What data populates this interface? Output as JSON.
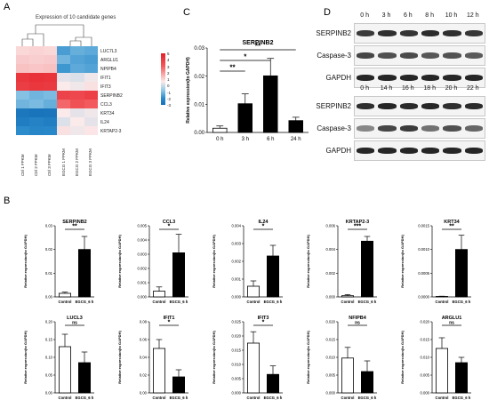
{
  "panels": {
    "A": "A",
    "B": "B",
    "C": "C",
    "D": "D"
  },
  "heatmap": {
    "title": "Expression of 10 candidate genes",
    "columns": [
      "Ctrl 1 FPKM",
      "Ctrl 2 FPKM",
      "Ctrl 3 FPKM",
      "EGCG 1 FPKM",
      "EGCG 2 FPKM",
      "EGCG 3 FPKM"
    ],
    "genes": [
      "LUC7L3",
      "ARGLU1",
      "NPIPB4",
      "IFIT1",
      "IFIT3",
      "SERPINB2",
      "CCL3",
      "KRT34",
      "IL24",
      "KRTAP2-3"
    ],
    "values": [
      [
        0.9,
        1.0,
        0.9,
        -1.2,
        -0.9,
        -1.0
      ],
      [
        1.2,
        1.1,
        1.2,
        -0.8,
        -1.1,
        -1.2
      ],
      [
        1.4,
        1.3,
        1.4,
        -1.3,
        -1.0,
        -1.1
      ],
      [
        4.2,
        4.4,
        4.3,
        0.3,
        0.2,
        0.4
      ],
      [
        4.0,
        4.2,
        4.1,
        0.5,
        0.4,
        0.7
      ],
      [
        -0.6,
        -0.8,
        -0.7,
        3.8,
        3.6,
        3.9
      ],
      [
        -0.8,
        -0.7,
        -0.9,
        2.8,
        3.3,
        3.0
      ],
      [
        -2.6,
        -2.8,
        -2.7,
        0.5,
        0.3,
        0.4
      ],
      [
        -2.3,
        -2.0,
        -2.2,
        0.2,
        0.5,
        0.3
      ],
      [
        -1.5,
        -1.8,
        -1.7,
        0.7,
        0.4,
        0.6
      ]
    ],
    "legend_ticks": [
      "5",
      "4",
      "3",
      "2",
      "1",
      "0",
      "-1",
      "-2",
      "-3"
    ],
    "legend_range": [
      -3,
      5
    ]
  },
  "panel_c": {
    "title": "SERPINB2",
    "ylabel": "Relative expression(to GAPDH)",
    "categories": [
      "0 h",
      "3 h",
      "6 h",
      "24 h"
    ],
    "values": [
      0.0015,
      0.0102,
      0.0201,
      0.0042
    ],
    "errors": [
      0.0008,
      0.0035,
      0.0062,
      0.0012
    ],
    "y_ticks": [
      "0.00",
      "0.01",
      "0.02",
      "0.03"
    ],
    "ylim": [
      0,
      0.03
    ],
    "sig": [
      {
        "from": 0,
        "to": 1,
        "label": "**"
      },
      {
        "from": 0,
        "to": 2,
        "label": "*"
      },
      {
        "from": 0,
        "to": 3,
        "label": "**"
      }
    ]
  },
  "panel_d": {
    "top_times": [
      "0 h",
      "3 h",
      "6 h",
      "8 h",
      "10 h",
      "12 h"
    ],
    "bottom_times": [
      "0 h",
      "14 h",
      "16 h",
      "18 h",
      "20 h",
      "22 h"
    ],
    "top_labels": [
      "SERPINB2",
      "Caspase-3",
      "GAPDH"
    ],
    "bottom_labels": [
      "SERPINB2",
      "Caspase-3",
      "GAPDH"
    ],
    "top_intensity": [
      [
        0.85,
        0.9,
        0.88,
        0.92,
        0.9,
        0.87
      ],
      [
        0.8,
        0.75,
        0.78,
        0.72,
        0.74,
        0.7
      ],
      [
        0.95,
        0.95,
        0.95,
        0.95,
        0.95,
        0.95
      ]
    ],
    "bottom_intensity": [
      [
        0.9,
        0.95,
        0.93,
        0.95,
        0.9,
        0.92
      ],
      [
        0.5,
        0.8,
        0.85,
        0.6,
        0.75,
        0.65
      ],
      [
        0.95,
        0.95,
        0.95,
        0.95,
        0.95,
        0.95
      ]
    ]
  },
  "panel_b": {
    "ylabel": "Relative expression(to GAPDH)",
    "groups": [
      "Control",
      "EGCG_6 h"
    ],
    "charts": [
      {
        "title": "SERPINB2",
        "values": [
          0.0015,
          0.02
        ],
        "errors": [
          0.0005,
          0.0055
        ],
        "ylim": [
          0,
          0.03
        ],
        "ticks": [
          "0.00",
          "0.01",
          "0.02",
          "0.03"
        ],
        "sig": "**",
        "fill": "#000000"
      },
      {
        "title": "CCL3",
        "values": [
          0.0004,
          0.0031
        ],
        "errors": [
          0.0003,
          0.0013
        ],
        "ylim": [
          0,
          0.005
        ],
        "ticks": [
          "0.000",
          "0.001",
          "0.002",
          "0.003",
          "0.004",
          "0.005"
        ],
        "sig": "*",
        "fill": "#000000"
      },
      {
        "title": "IL24",
        "values": [
          0.0006,
          0.0023
        ],
        "errors": [
          0.0003,
          0.0006
        ],
        "ylim": [
          0,
          0.004
        ],
        "ticks": [
          "0.000",
          "0.001",
          "0.002",
          "0.003",
          "0.004"
        ],
        "sig": "*",
        "fill": "#000000"
      },
      {
        "title": "KRTAP2-3",
        "values": [
          0.0001,
          0.0047
        ],
        "errors": [
          0.0001,
          0.0004
        ],
        "ylim": [
          0,
          0.006
        ],
        "ticks": [
          "0.000",
          "0.002",
          "0.004",
          "0.006"
        ],
        "sig": "***",
        "fill": "#000000"
      },
      {
        "title": "KRT34",
        "values": [
          1e-05,
          0.001
        ],
        "errors": [
          5e-06,
          0.0003
        ],
        "ylim": [
          0,
          0.0015
        ],
        "ticks": [
          "0.0000",
          "0.0005",
          "0.0010",
          "0.0015"
        ],
        "sig": "**",
        "fill": "#000000"
      },
      {
        "title": "LUCL3",
        "values": [
          0.13,
          0.085
        ],
        "errors": [
          0.035,
          0.03
        ],
        "ylim": [
          0,
          0.2
        ],
        "ticks": [
          "0.00",
          "0.05",
          "0.10",
          "0.15",
          "0.20"
        ],
        "sig": "ns",
        "fill": "#000000"
      },
      {
        "title": "IFIT1",
        "values": [
          0.05,
          0.018
        ],
        "errors": [
          0.01,
          0.008
        ],
        "ylim": [
          0,
          0.08
        ],
        "ticks": [
          "0.00",
          "0.02",
          "0.04",
          "0.06",
          "0.08"
        ],
        "sig": "*",
        "fill": "#000000"
      },
      {
        "title": "IFIT3",
        "values": [
          0.0175,
          0.0065
        ],
        "errors": [
          0.004,
          0.003
        ],
        "ylim": [
          0,
          0.025
        ],
        "ticks": [
          "0.000",
          "0.005",
          "0.010",
          "0.015",
          "0.020",
          "0.025"
        ],
        "sig": "*",
        "fill": "#000000"
      },
      {
        "title": "NFIPB4",
        "values": [
          0.0098,
          0.006
        ],
        "errors": [
          0.003,
          0.003
        ],
        "ylim": [
          0,
          0.02
        ],
        "ticks": [
          "0.000",
          "0.005",
          "0.010",
          "0.015",
          "0.020"
        ],
        "sig": "ns",
        "fill": "#000000"
      },
      {
        "title": "ARGLU1",
        "values": [
          0.0125,
          0.0085
        ],
        "errors": [
          0.003,
          0.0015
        ],
        "ylim": [
          0,
          0.02
        ],
        "ticks": [
          "0.000",
          "0.005",
          "0.010",
          "0.015",
          "0.020"
        ],
        "sig": "ns",
        "fill": "#000000"
      }
    ]
  }
}
